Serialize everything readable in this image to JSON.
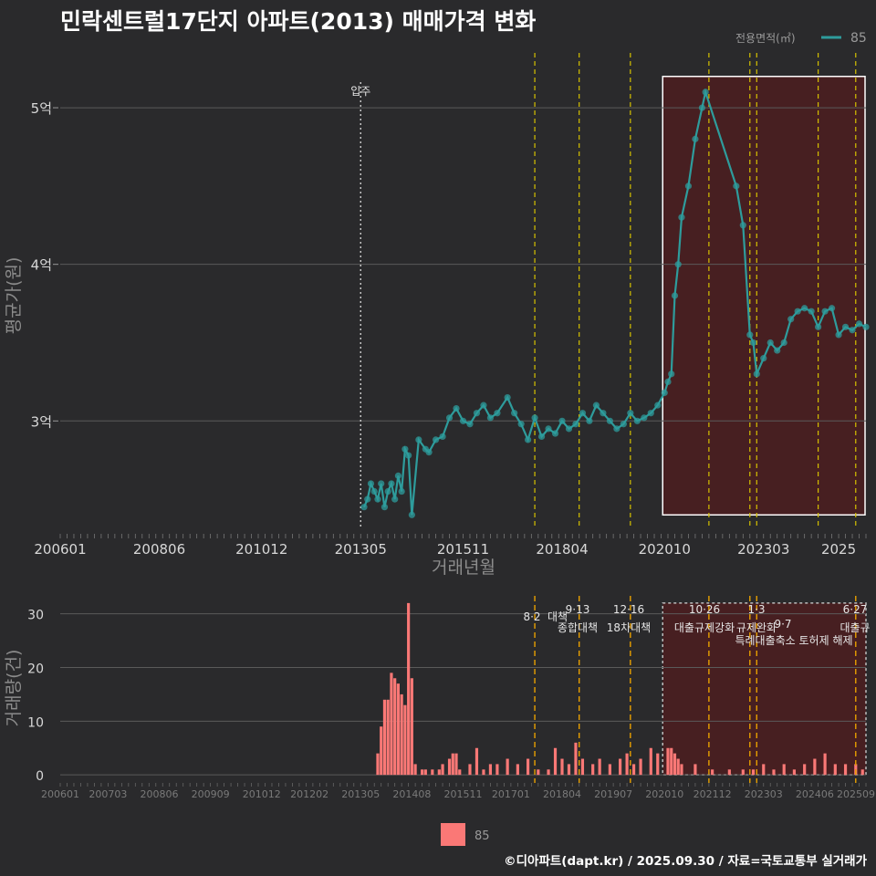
{
  "title": "민락센트럴17단지 아파트(2013) 매매가격 변화",
  "footer": "©디아파트(dapt.kr) / 2025.09.30 / 자료=국토교통부 실거래가",
  "colors": {
    "background": "#2a2a2c",
    "price_line": "#2e9c9c",
    "volume_bar": "#fa7876",
    "policy_line": "#d6c200",
    "highlight_fill": "#4a1e20"
  },
  "chart_data": [
    {
      "type": "line",
      "ylabel": "평균가(원)",
      "xlabel": "거래년월",
      "legend_title": "전용면적(㎡)",
      "legend_position": "top-right",
      "series": [
        {
          "name": "85"
        }
      ],
      "y_ticks": [
        {
          "v": 3,
          "label": "3억"
        },
        {
          "v": 4,
          "label": "4억"
        },
        {
          "v": 5,
          "label": "5억"
        }
      ],
      "ylim": [
        2.32,
        5.35
      ],
      "x_ticks": [
        "200601",
        "200806",
        "201012",
        "201305",
        "201511",
        "201804",
        "202010",
        "202303",
        "2025"
      ],
      "move_in": {
        "label": "입주",
        "x": "201305"
      },
      "policy_lines": [
        "201708",
        "201809",
        "201912",
        "202111",
        "202301",
        "202211",
        "202407",
        "202506"
      ],
      "highlight": {
        "from": "202010",
        "to": "202509"
      },
      "price_points": [
        [
          "201306",
          2.45
        ],
        [
          "201307",
          2.5
        ],
        [
          "201308",
          2.6
        ],
        [
          "201309",
          2.55
        ],
        [
          "201310",
          2.5
        ],
        [
          "201311",
          2.6
        ],
        [
          "201312",
          2.45
        ],
        [
          "201401",
          2.55
        ],
        [
          "201402",
          2.6
        ],
        [
          "201403",
          2.5
        ],
        [
          "201404",
          2.65
        ],
        [
          "201405",
          2.55
        ],
        [
          "201406",
          2.82
        ],
        [
          "201407",
          2.78
        ],
        [
          "201408",
          2.4
        ],
        [
          "201410",
          2.88
        ],
        [
          "201412",
          2.82
        ],
        [
          "201501",
          2.8
        ],
        [
          "201503",
          2.88
        ],
        [
          "201505",
          2.9
        ],
        [
          "201507",
          3.02
        ],
        [
          "201509",
          3.08
        ],
        [
          "201511",
          3.0
        ],
        [
          "201601",
          2.98
        ],
        [
          "201603",
          3.05
        ],
        [
          "201605",
          3.1
        ],
        [
          "201607",
          3.02
        ],
        [
          "201609",
          3.05
        ],
        [
          "201612",
          3.15
        ],
        [
          "201702",
          3.05
        ],
        [
          "201704",
          2.98
        ],
        [
          "201706",
          2.88
        ],
        [
          "201708",
          3.02
        ],
        [
          "201710",
          2.9
        ],
        [
          "201712",
          2.95
        ],
        [
          "201802",
          2.92
        ],
        [
          "201804",
          3.0
        ],
        [
          "201806",
          2.95
        ],
        [
          "201808",
          2.98
        ],
        [
          "201810",
          3.05
        ],
        [
          "201812",
          3.0
        ],
        [
          "201902",
          3.1
        ],
        [
          "201904",
          3.05
        ],
        [
          "201906",
          3.0
        ],
        [
          "201908",
          2.95
        ],
        [
          "201910",
          2.98
        ],
        [
          "201912",
          3.05
        ],
        [
          "202002",
          3.0
        ],
        [
          "202004",
          3.02
        ],
        [
          "202006",
          3.05
        ],
        [
          "202008",
          3.1
        ],
        [
          "202010",
          3.18
        ],
        [
          "202011",
          3.25
        ],
        [
          "202012",
          3.3
        ],
        [
          "202101",
          3.8
        ],
        [
          "202102",
          4.0
        ],
        [
          "202103",
          4.3
        ],
        [
          "202105",
          4.5
        ],
        [
          "202107",
          4.8
        ],
        [
          "202109",
          5.0
        ],
        [
          "202110",
          5.1
        ],
        [
          "202207",
          4.5
        ],
        [
          "202209",
          4.25
        ],
        [
          "202211",
          3.55
        ],
        [
          "202212",
          3.5
        ],
        [
          "202301",
          3.3
        ],
        [
          "202303",
          3.4
        ],
        [
          "202305",
          3.5
        ],
        [
          "202307",
          3.45
        ],
        [
          "202309",
          3.5
        ],
        [
          "202311",
          3.65
        ],
        [
          "202401",
          3.7
        ],
        [
          "202403",
          3.72
        ],
        [
          "202405",
          3.7
        ],
        [
          "202407",
          3.6
        ],
        [
          "202409",
          3.7
        ],
        [
          "202411",
          3.72
        ],
        [
          "202501",
          3.55
        ],
        [
          "202503",
          3.6
        ],
        [
          "202505",
          3.58
        ],
        [
          "202507",
          3.62
        ],
        [
          "202509",
          3.6
        ]
      ]
    },
    {
      "type": "bar",
      "ylabel": "거래량(건)",
      "series": [
        {
          "name": "85"
        }
      ],
      "y_ticks": [
        0,
        10,
        20,
        30
      ],
      "ylim": [
        -1.5,
        33
      ],
      "x_ticks": [
        "200601",
        "200703",
        "200806",
        "200909",
        "201012",
        "201202",
        "201305",
        "201408",
        "201511",
        "201701",
        "201804",
        "201907",
        "202010",
        "202112",
        "202303",
        "202406",
        "202509"
      ],
      "policy_events": [
        {
          "x": "201708",
          "date": "8·2",
          "label": "대책"
        },
        {
          "x": "201809",
          "date": "9·13",
          "label": "종합대책"
        },
        {
          "x": "201912",
          "date": "12·16",
          "label": "18차대책"
        },
        {
          "x": "202111",
          "date": "10·26",
          "label": "대출규제강화"
        },
        {
          "x": "202301",
          "date": "1·3",
          "label": "규제완화"
        },
        {
          "x": "202211",
          "date": "9·7",
          "label": "특례대출축소 토허제 해제"
        },
        {
          "x": "202506",
          "date": "6·27",
          "label": "대출규"
        }
      ],
      "volumes": [
        [
          "201310",
          4
        ],
        [
          "201311",
          9
        ],
        [
          "201312",
          14
        ],
        [
          "201401",
          14
        ],
        [
          "201402",
          19
        ],
        [
          "201403",
          18
        ],
        [
          "201404",
          17
        ],
        [
          "201405",
          15
        ],
        [
          "201406",
          13
        ],
        [
          "201407",
          32
        ],
        [
          "201408",
          18
        ],
        [
          "201409",
          2
        ],
        [
          "201411",
          1
        ],
        [
          "201412",
          1
        ],
        [
          "201502",
          1
        ],
        [
          "201504",
          1
        ],
        [
          "201505",
          2
        ],
        [
          "201507",
          3
        ],
        [
          "201508",
          4
        ],
        [
          "201509",
          4
        ],
        [
          "201510",
          1
        ],
        [
          "201601",
          2
        ],
        [
          "201603",
          5
        ],
        [
          "201605",
          1
        ],
        [
          "201607",
          2
        ],
        [
          "201609",
          2
        ],
        [
          "201612",
          3
        ],
        [
          "201703",
          2
        ],
        [
          "201706",
          3
        ],
        [
          "201709",
          1
        ],
        [
          "201712",
          1
        ],
        [
          "201802",
          5
        ],
        [
          "201804",
          3
        ],
        [
          "201806",
          2
        ],
        [
          "201808",
          6
        ],
        [
          "201810",
          3
        ],
        [
          "201901",
          2
        ],
        [
          "201903",
          3
        ],
        [
          "201906",
          2
        ],
        [
          "201909",
          3
        ],
        [
          "201911",
          4
        ],
        [
          "202001",
          2
        ],
        [
          "202003",
          3
        ],
        [
          "202006",
          5
        ],
        [
          "202008",
          4
        ],
        [
          "202011",
          5
        ],
        [
          "202012",
          5
        ],
        [
          "202101",
          4
        ],
        [
          "202102",
          3
        ],
        [
          "202103",
          2
        ],
        [
          "202107",
          2
        ],
        [
          "202112",
          1
        ],
        [
          "202205",
          1
        ],
        [
          "202209",
          1
        ],
        [
          "202212",
          1
        ],
        [
          "202303",
          2
        ],
        [
          "202306",
          1
        ],
        [
          "202309",
          2
        ],
        [
          "202312",
          1
        ],
        [
          "202403",
          2
        ],
        [
          "202406",
          3
        ],
        [
          "202409",
          4
        ],
        [
          "202412",
          2
        ],
        [
          "202503",
          2
        ],
        [
          "202506",
          2
        ],
        [
          "202508",
          1
        ]
      ]
    }
  ]
}
